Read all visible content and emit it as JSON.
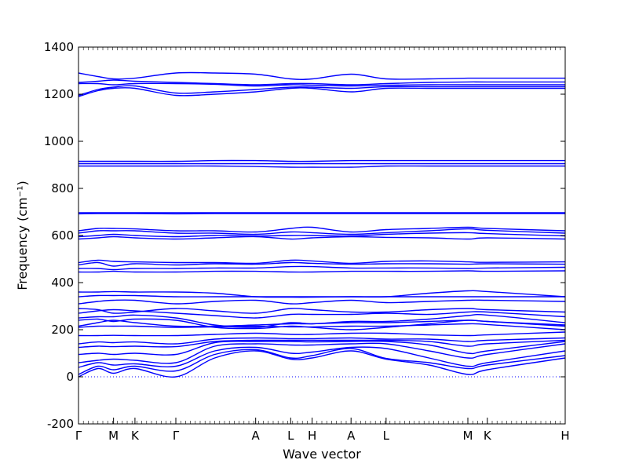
{
  "chart_data": {
    "type": "line",
    "xlabel": "Wave vector",
    "ylabel": "Frequency (cm⁻¹)",
    "ylim": [
      -200,
      1400
    ],
    "yticks": [
      -200,
      0,
      200,
      400,
      600,
      800,
      1000,
      1200,
      1400
    ],
    "xlim": [
      0,
      25
    ],
    "xticks": [
      {
        "label": "Γ",
        "x": 0
      },
      {
        "label": "M",
        "x": 1.8
      },
      {
        "label": "K",
        "x": 2.9
      },
      {
        "label": "Γ",
        "x": 5.0
      },
      {
        "label": "A",
        "x": 9.1
      },
      {
        "label": "L",
        "x": 10.9
      },
      {
        "label": "H",
        "x": 12.0
      },
      {
        "label": "A",
        "x": 14.0
      },
      {
        "label": "L",
        "x": 15.8
      },
      {
        "label": "M",
        "x": 20.0
      },
      {
        "label": "K",
        "x": 21.0
      },
      {
        "label": "H",
        "x": 25.0
      }
    ],
    "minor_tick_step": 0.25,
    "zero_line": true,
    "line_color": "#0000ff",
    "zero_line_color": "#0000ff",
    "series": [
      {
        "x": [
          0,
          1,
          1.8,
          2.9,
          5,
          7,
          9.1,
          10.9,
          12,
          14,
          15.8,
          18,
          20,
          21,
          25
        ],
        "y": [
          0,
          35,
          15,
          35,
          0,
          80,
          110,
          75,
          80,
          110,
          75,
          50,
          10,
          30,
          80
        ]
      },
      {
        "x": [
          0,
          1,
          1.8,
          2.9,
          5,
          7,
          9.1,
          10.9,
          12,
          14,
          15.8,
          18,
          20,
          21,
          25
        ],
        "y": [
          10,
          45,
          30,
          45,
          25,
          95,
          115,
          80,
          90,
          120,
          78,
          60,
          35,
          50,
          90
        ]
      },
      {
        "x": [
          0,
          1,
          1.8,
          2.9,
          5,
          7,
          9.1,
          10.9,
          12,
          14,
          15.8,
          18,
          20,
          21,
          25
        ],
        "y": [
          40,
          60,
          50,
          55,
          45,
          110,
          125,
          100,
          105,
          125,
          120,
          80,
          45,
          60,
          110
        ]
      },
      {
        "x": [
          0,
          1,
          1.8,
          2.9,
          5,
          7,
          9.1,
          10.9,
          12,
          14,
          15.8,
          18,
          20,
          21,
          25
        ],
        "y": [
          60,
          70,
          75,
          70,
          60,
          130,
          140,
          135,
          135,
          140,
          140,
          110,
          80,
          95,
          140
        ]
      },
      {
        "x": [
          0,
          1,
          1.8,
          2.9,
          5,
          7,
          9.1,
          10.9,
          12,
          14,
          15.8,
          18,
          20,
          21,
          25
        ],
        "y": [
          95,
          100,
          95,
          100,
          95,
          145,
          150,
          150,
          148,
          150,
          150,
          135,
          100,
          110,
          150
        ]
      },
      {
        "x": [
          0,
          1,
          1.8,
          2.9,
          5,
          7,
          9.1,
          10.9,
          12,
          14,
          15.8,
          18,
          20,
          21,
          25
        ],
        "y": [
          125,
          130,
          128,
          130,
          128,
          150,
          155,
          155,
          155,
          155,
          155,
          150,
          130,
          140,
          155
        ]
      },
      {
        "x": [
          0,
          1,
          1.8,
          2.9,
          5,
          7,
          9.1,
          10.9,
          12,
          14,
          15.8,
          18,
          20,
          21,
          25
        ],
        "y": [
          140,
          148,
          145,
          148,
          140,
          160,
          165,
          162,
          162,
          165,
          160,
          160,
          150,
          155,
          165
        ]
      },
      {
        "x": [
          0,
          1,
          1.8,
          2.9,
          5,
          7,
          9.1,
          10.9,
          12,
          14,
          15.8,
          18,
          20,
          21,
          25
        ],
        "y": [
          175,
          175,
          176,
          175,
          175,
          180,
          185,
          180,
          180,
          185,
          185,
          178,
          175,
          178,
          190
        ]
      },
      {
        "x": [
          0,
          1,
          1.8,
          2.9,
          5,
          7,
          9.1,
          10.9,
          12,
          14,
          15.8,
          18,
          20,
          21,
          25
        ],
        "y": [
          210,
          215,
          215,
          215,
          210,
          212,
          215,
          212,
          212,
          215,
          215,
          220,
          225,
          222,
          200
        ]
      },
      {
        "x": [
          0,
          1,
          1.8,
          2.9,
          5,
          7,
          9.1,
          10.9,
          12,
          14,
          15.8,
          18,
          20,
          21,
          25
        ],
        "y": [
          215,
          230,
          240,
          230,
          215,
          215,
          220,
          225,
          225,
          230,
          230,
          235,
          240,
          235,
          215
        ]
      },
      {
        "x": [
          0,
          1,
          1.8,
          2.9,
          5,
          7,
          9.1,
          10.9,
          12,
          14,
          15.8,
          18,
          20,
          21,
          25
        ],
        "y": [
          240,
          245,
          235,
          245,
          240,
          210,
          205,
          215,
          210,
          200,
          210,
          225,
          240,
          235,
          220
        ]
      },
      {
        "x": [
          0,
          1,
          1.8,
          2.9,
          5,
          7,
          9.1,
          10.9,
          12,
          14,
          15.8,
          18,
          20,
          21,
          25
        ],
        "y": [
          250,
          255,
          255,
          262,
          250,
          220,
          210,
          230,
          225,
          235,
          235,
          245,
          260,
          262,
          230
        ]
      },
      {
        "x": [
          0,
          1,
          1.8,
          2.9,
          5,
          7,
          9.1,
          10.9,
          12,
          14,
          15.8,
          18,
          20,
          21,
          25
        ],
        "y": [
          270,
          280,
          285,
          280,
          270,
          260,
          250,
          265,
          265,
          265,
          270,
          265,
          275,
          275,
          255
        ]
      },
      {
        "x": [
          0,
          1,
          1.8,
          2.9,
          5,
          7,
          9.1,
          10.9,
          12,
          14,
          15.8,
          18,
          20,
          21,
          25
        ],
        "y": [
          290,
          285,
          270,
          275,
          290,
          280,
          270,
          290,
          285,
          275,
          275,
          285,
          290,
          285,
          275
        ]
      },
      {
        "x": [
          0,
          1,
          1.8,
          2.9,
          5,
          7,
          9.1,
          10.9,
          12,
          14,
          15.8,
          18,
          20,
          21,
          25
        ],
        "y": [
          310,
          320,
          325,
          325,
          310,
          320,
          325,
          310,
          315,
          325,
          315,
          320,
          325,
          325,
          320
        ]
      },
      {
        "x": [
          0,
          1,
          1.8,
          2.9,
          5,
          7,
          9.1,
          10.9,
          12,
          14,
          15.8,
          18,
          20,
          21,
          25
        ],
        "y": [
          340,
          345,
          345,
          345,
          340,
          340,
          340,
          340,
          340,
          340,
          340,
          340,
          340,
          340,
          340
        ]
      },
      {
        "x": [
          0,
          1,
          1.8,
          2.9,
          5,
          7,
          9.1,
          10.9,
          12,
          14,
          15.8,
          18,
          20,
          21,
          25
        ],
        "y": [
          360,
          360,
          362,
          360,
          360,
          355,
          340,
          338,
          338,
          340,
          340,
          355,
          365,
          362,
          340
        ]
      },
      {
        "x": [
          0,
          1,
          1.8,
          2.9,
          5,
          7,
          9.1,
          10.9,
          12,
          14,
          15.8,
          18,
          20,
          21,
          25
        ],
        "y": [
          445,
          445,
          448,
          445,
          445,
          448,
          448,
          445,
          445,
          448,
          448,
          448,
          450,
          448,
          450
        ]
      },
      {
        "x": [
          0,
          1,
          1.8,
          2.9,
          5,
          7,
          9.1,
          10.9,
          12,
          14,
          15.8,
          18,
          20,
          21,
          25
        ],
        "y": [
          460,
          460,
          455,
          460,
          460,
          462,
          462,
          468,
          468,
          462,
          462,
          462,
          460,
          462,
          465
        ]
      },
      {
        "x": [
          0,
          1,
          1.8,
          2.9,
          5,
          7,
          9.1,
          10.9,
          12,
          14,
          15.8,
          18,
          20,
          21,
          25
        ],
        "y": [
          475,
          485,
          470,
          480,
          475,
          480,
          478,
          485,
          482,
          478,
          480,
          480,
          478,
          480,
          478
        ]
      },
      {
        "x": [
          0,
          1,
          1.8,
          2.9,
          5,
          7,
          9.1,
          10.9,
          12,
          14,
          15.8,
          18,
          20,
          21,
          25
        ],
        "y": [
          485,
          495,
          490,
          488,
          485,
          485,
          482,
          495,
          492,
          482,
          490,
          492,
          488,
          486,
          488
        ]
      },
      {
        "x": [
          0,
          1,
          1.8,
          2.9,
          5,
          7,
          9.1,
          10.9,
          12,
          14,
          15.8,
          18,
          20,
          21,
          25
        ],
        "y": [
          585,
          590,
          595,
          590,
          585,
          590,
          595,
          585,
          590,
          595,
          592,
          590,
          585,
          590,
          585
        ]
      },
      {
        "x": [
          0,
          1,
          1.8,
          2.9,
          5,
          7,
          9.1,
          10.9,
          12,
          14,
          15.8,
          18,
          20,
          21,
          25
        ],
        "y": [
          595,
          600,
          605,
          600,
          595,
          600,
          598,
          600,
          600,
          598,
          605,
          610,
          612,
          608,
          598
        ]
      },
      {
        "x": [
          0,
          1,
          1.8,
          2.9,
          5,
          7,
          9.1,
          10.9,
          12,
          14,
          15.8,
          18,
          20,
          21,
          25
        ],
        "y": [
          610,
          620,
          620,
          620,
          610,
          610,
          605,
          615,
          612,
          605,
          612,
          620,
          628,
          622,
          610
        ]
      },
      {
        "x": [
          0,
          1,
          1.8,
          2.9,
          5,
          7,
          9.1,
          10.9,
          12,
          14,
          15.8,
          18,
          20,
          21,
          25
        ],
        "y": [
          620,
          630,
          630,
          628,
          620,
          620,
          615,
          630,
          635,
          615,
          625,
          630,
          635,
          630,
          620
        ]
      },
      {
        "x": [
          0,
          1,
          1.8,
          2.9,
          5,
          7,
          9.1,
          10.9,
          12,
          14,
          15.8,
          18,
          20,
          21,
          25
        ],
        "y": [
          692,
          693,
          693,
          693,
          692,
          693,
          693,
          693,
          693,
          693,
          693,
          693,
          693,
          693,
          693
        ]
      },
      {
        "x": [
          0,
          1,
          1.8,
          2.9,
          5,
          7,
          9.1,
          10.9,
          12,
          14,
          15.8,
          18,
          20,
          21,
          25
        ],
        "y": [
          697,
          697,
          697,
          697,
          697,
          697,
          697,
          697,
          697,
          697,
          697,
          697,
          697,
          697,
          697
        ]
      },
      {
        "x": [
          0,
          1,
          1.8,
          2.9,
          5,
          7,
          9.1,
          10.9,
          12,
          14,
          15.8,
          18,
          20,
          21,
          25
        ],
        "y": [
          895,
          895,
          895,
          895,
          895,
          895,
          893,
          890,
          890,
          890,
          895,
          895,
          895,
          895,
          895
        ]
      },
      {
        "x": [
          0,
          1,
          1.8,
          2.9,
          5,
          7,
          9.1,
          10.9,
          12,
          14,
          15.8,
          18,
          20,
          21,
          25
        ],
        "y": [
          905,
          905,
          905,
          905,
          905,
          905,
          905,
          905,
          905,
          905,
          905,
          905,
          905,
          905,
          905
        ]
      },
      {
        "x": [
          0,
          1,
          1.8,
          2.9,
          5,
          7,
          9.1,
          10.9,
          12,
          14,
          15.8,
          18,
          20,
          21,
          25
        ],
        "y": [
          915,
          915,
          915,
          915,
          915,
          918,
          918,
          915,
          915,
          918,
          918,
          918,
          918,
          918,
          918
        ]
      },
      {
        "x": [
          0,
          1,
          1.8,
          2.9,
          5,
          7,
          9.1,
          10.9,
          12,
          14,
          15.8,
          18,
          20,
          21,
          25
        ],
        "y": [
          1190,
          1215,
          1225,
          1225,
          1195,
          1200,
          1210,
          1225,
          1225,
          1210,
          1225,
          1225,
          1225,
          1225,
          1225
        ]
      },
      {
        "x": [
          0,
          1,
          1.8,
          2.9,
          5,
          7,
          9.1,
          10.9,
          12,
          14,
          15.8,
          18,
          20,
          21,
          25
        ],
        "y": [
          1195,
          1220,
          1230,
          1235,
          1205,
          1210,
          1220,
          1230,
          1230,
          1225,
          1232,
          1232,
          1232,
          1232,
          1232
        ]
      },
      {
        "x": [
          0,
          1,
          1.8,
          2.9,
          5,
          7,
          9.1,
          10.9,
          12,
          14,
          15.8,
          18,
          20,
          21,
          25
        ],
        "y": [
          1245,
          1245,
          1240,
          1245,
          1245,
          1242,
          1235,
          1240,
          1238,
          1235,
          1238,
          1240,
          1240,
          1240,
          1240
        ]
      },
      {
        "x": [
          0,
          1,
          1.8,
          2.9,
          5,
          7,
          9.1,
          10.9,
          12,
          14,
          15.8,
          18,
          20,
          21,
          25
        ],
        "y": [
          1250,
          1255,
          1260,
          1255,
          1250,
          1245,
          1240,
          1245,
          1245,
          1240,
          1245,
          1250,
          1252,
          1252,
          1252
        ]
      },
      {
        "x": [
          0,
          1,
          1.8,
          2.9,
          5,
          7,
          9.1,
          10.9,
          12,
          14,
          15.8,
          18,
          20,
          21,
          25
        ],
        "y": [
          1290,
          1275,
          1265,
          1268,
          1290,
          1290,
          1285,
          1265,
          1265,
          1285,
          1265,
          1265,
          1268,
          1268,
          1268
        ]
      }
    ]
  }
}
